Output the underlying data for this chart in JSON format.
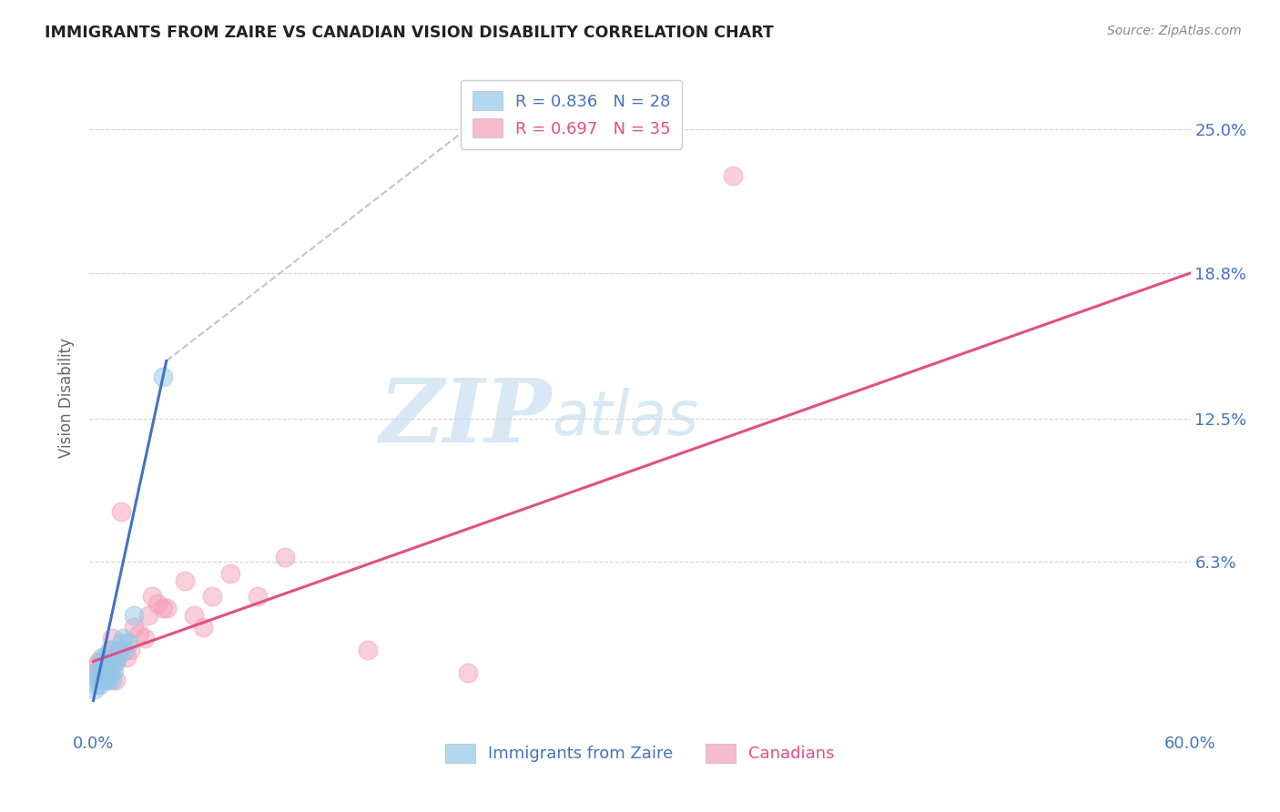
{
  "title": "IMMIGRANTS FROM ZAIRE VS CANADIAN VISION DISABILITY CORRELATION CHART",
  "source": "Source: ZipAtlas.com",
  "ylabel": "Vision Disability",
  "ytick_labels": [
    "25.0%",
    "18.8%",
    "12.5%",
    "6.3%"
  ],
  "ytick_values": [
    0.25,
    0.188,
    0.125,
    0.063
  ],
  "xtick_values": [
    0.0,
    0.12,
    0.24,
    0.36,
    0.48,
    0.6
  ],
  "blue_color": "#93c6e8",
  "pink_color": "#f4a0b5",
  "blue_line_color": "#4472c4",
  "pink_line_color": "#e05080",
  "blue_scatter_x": [
    0.001,
    0.002,
    0.003,
    0.003,
    0.004,
    0.004,
    0.005,
    0.005,
    0.006,
    0.006,
    0.007,
    0.007,
    0.008,
    0.008,
    0.009,
    0.009,
    0.01,
    0.01,
    0.011,
    0.012,
    0.013,
    0.014,
    0.015,
    0.016,
    0.017,
    0.019,
    0.022,
    0.038
  ],
  "blue_scatter_y": [
    0.008,
    0.01,
    0.012,
    0.015,
    0.01,
    0.018,
    0.02,
    0.022,
    0.012,
    0.016,
    0.018,
    0.022,
    0.012,
    0.02,
    0.015,
    0.025,
    0.012,
    0.018,
    0.016,
    0.02,
    0.022,
    0.025,
    0.028,
    0.03,
    0.025,
    0.028,
    0.04,
    0.143
  ],
  "pink_scatter_x": [
    0.001,
    0.002,
    0.003,
    0.004,
    0.005,
    0.006,
    0.007,
    0.008,
    0.009,
    0.01,
    0.011,
    0.012,
    0.013,
    0.014,
    0.015,
    0.018,
    0.02,
    0.022,
    0.025,
    0.028,
    0.03,
    0.032,
    0.035,
    0.038,
    0.04,
    0.05,
    0.055,
    0.06,
    0.065,
    0.075,
    0.09,
    0.105,
    0.15,
    0.205,
    0.35
  ],
  "pink_scatter_y": [
    0.018,
    0.015,
    0.02,
    0.018,
    0.012,
    0.016,
    0.018,
    0.013,
    0.025,
    0.03,
    0.022,
    0.012,
    0.022,
    0.025,
    0.085,
    0.022,
    0.025,
    0.035,
    0.032,
    0.03,
    0.04,
    0.048,
    0.045,
    0.043,
    0.043,
    0.055,
    0.04,
    0.035,
    0.048,
    0.058,
    0.048,
    0.065,
    0.025,
    0.015,
    0.23
  ],
  "blue_line_x": [
    0.0,
    0.04
  ],
  "blue_line_y": [
    0.003,
    0.15
  ],
  "dashed_line_x": [
    0.04,
    0.22
  ],
  "dashed_line_y": [
    0.15,
    0.26
  ],
  "pink_line_x": [
    0.0,
    0.6
  ],
  "pink_line_y": [
    0.02,
    0.188
  ],
  "xmin": -0.002,
  "xmax": 0.6,
  "ymin": -0.01,
  "ymax": 0.278
}
